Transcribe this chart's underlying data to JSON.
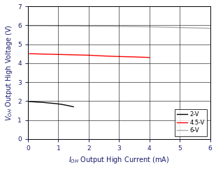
{
  "title": "",
  "xlabel": "I$_{OH}$ Output High Current (mA)",
  "ylabel": "V$_{OH}$ Output High Voltage (V)",
  "xlim": [
    0,
    6
  ],
  "ylim": [
    0,
    7
  ],
  "xticks": [
    0,
    1,
    2,
    3,
    4,
    5,
    6
  ],
  "yticks": [
    0,
    1,
    2,
    3,
    4,
    5,
    6,
    7
  ],
  "lines": [
    {
      "label": "2-V",
      "color": "#000000",
      "x": [
        0.05,
        0.1,
        0.2,
        0.3,
        0.5,
        0.7,
        0.9,
        1.1,
        1.3,
        1.5
      ],
      "y": [
        1.97,
        1.97,
        1.96,
        1.95,
        1.93,
        1.9,
        1.87,
        1.83,
        1.77,
        1.7
      ]
    },
    {
      "label": "4.5-V",
      "color": "#ff0000",
      "x": [
        0.05,
        0.5,
        1.0,
        1.5,
        2.0,
        2.5,
        3.0,
        3.5,
        4.0
      ],
      "y": [
        4.5,
        4.48,
        4.46,
        4.44,
        4.42,
        4.38,
        4.35,
        4.33,
        4.3
      ]
    },
    {
      "label": "6-V",
      "color": "#aaaaaa",
      "x": [
        0.05,
        0.5,
        1.0,
        1.5,
        2.0,
        2.5,
        3.0,
        3.5,
        4.0,
        4.5,
        5.0,
        5.5,
        6.0
      ],
      "y": [
        5.97,
        5.97,
        5.96,
        5.96,
        5.95,
        5.95,
        5.94,
        5.93,
        5.92,
        5.9,
        5.88,
        5.86,
        5.84
      ]
    }
  ],
  "legend_loc": "lower right",
  "grid": true,
  "figsize": [
    3.09,
    2.43
  ],
  "dpi": 100,
  "bg_color": "#ffffff",
  "text_color": "#1a1a6e",
  "grid_color": "#000000",
  "spine_color": "#000000",
  "tick_color": "#1a1a6e",
  "label_fontsize": 7,
  "tick_fontsize": 6.5,
  "legend_fontsize": 6,
  "linewidth": 1.0
}
